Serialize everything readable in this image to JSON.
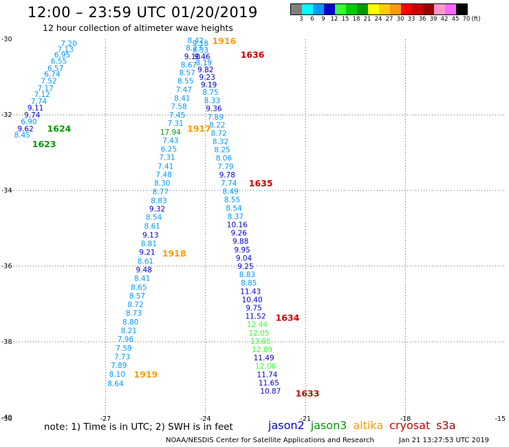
{
  "header": {
    "title": "12:00 – 23:59 UTC 01/20/2019",
    "subtitle": "12 hour collection of altimeter wave heights"
  },
  "colorscale": {
    "colors": [
      "#7f7f7f",
      "#00ffff",
      "#0099ff",
      "#0000cc",
      "#33ff33",
      "#00cc00",
      "#009900",
      "#ffff00",
      "#ffcc00",
      "#ff9900",
      "#ff0000",
      "#cc0000",
      "#990000",
      "#ff99cc",
      "#ff66ff",
      "#000000"
    ],
    "labels": [
      "3",
      "6",
      "9",
      "12",
      "15",
      "18",
      "21",
      "24",
      "27",
      "30",
      "33",
      "36",
      "39",
      "42",
      "45",
      "70"
    ],
    "unit": "(ft)"
  },
  "note": "note: 1) Time is in UTC; 2) SWH is in feet",
  "legend": [
    {
      "name": "jason2",
      "color": "#0000cc"
    },
    {
      "name": "jason3",
      "color": "#009900"
    },
    {
      "name": "altika",
      "color": "#ff9900"
    },
    {
      "name": "cryosat",
      "color": "#cc0000"
    },
    {
      "name": "s3a",
      "color": "#990000"
    }
  ],
  "footer": {
    "left": "NOAA/NESDIS Center for Satellite Applications and Research",
    "right": "Jan 21 13:27:53 UTC 2019"
  },
  "chart_data": {
    "type": "scatter",
    "xlim": [
      -30,
      -15
    ],
    "ylim": [
      -40,
      -30
    ],
    "xticks": [
      "-30",
      "-27",
      "-24",
      "-21",
      "-18",
      "-15"
    ],
    "yticks": [
      "-30",
      "-32",
      "-34",
      "-36",
      "-38",
      "-40"
    ],
    "grid": true,
    "colors": {
      "light": "#0099ff",
      "dark": "#0000cc",
      "green": "#009900",
      "lightgreen": "#33ff33",
      "orange": "#ff9900",
      "red": "#cc0000"
    },
    "points": [
      {
        "x": -28.1,
        "y": -30.11,
        "v": "7.20",
        "c": "light"
      },
      {
        "x": -28.2,
        "y": -30.26,
        "v": "7.13",
        "c": "light"
      },
      {
        "x": -28.3,
        "y": -30.41,
        "v": "6.95",
        "c": "light"
      },
      {
        "x": -28.4,
        "y": -30.57,
        "v": "6.55",
        "c": "light"
      },
      {
        "x": -28.5,
        "y": -30.76,
        "v": "6.57",
        "c": "light"
      },
      {
        "x": -28.6,
        "y": -30.92,
        "v": "6.74",
        "c": "light"
      },
      {
        "x": -28.7,
        "y": -31.1,
        "v": "7.52",
        "c": "light"
      },
      {
        "x": -28.8,
        "y": -31.29,
        "v": "7.17",
        "c": "light"
      },
      {
        "x": -28.9,
        "y": -31.45,
        "v": "7.12",
        "c": "light"
      },
      {
        "x": -29.0,
        "y": -31.64,
        "v": "7.74",
        "c": "light"
      },
      {
        "x": -29.1,
        "y": -31.81,
        "v": "9.11",
        "c": "dark"
      },
      {
        "x": -29.2,
        "y": -32.0,
        "v": "9.74",
        "c": "dark"
      },
      {
        "x": -29.3,
        "y": -32.17,
        "v": "6.90",
        "c": "light"
      },
      {
        "x": -29.4,
        "y": -32.36,
        "v": "9.62",
        "c": "dark"
      },
      {
        "x": -29.5,
        "y": -32.53,
        "v": "8.45",
        "c": "light"
      },
      {
        "x": -24.3,
        "y": -30.03,
        "v": "8.42",
        "c": "light"
      },
      {
        "x": -24.35,
        "y": -30.23,
        "v": "8.23",
        "c": "light"
      },
      {
        "x": -24.4,
        "y": -30.45,
        "v": "9.10",
        "c": "dark"
      },
      {
        "x": -24.5,
        "y": -30.67,
        "v": "8.67",
        "c": "light"
      },
      {
        "x": -24.55,
        "y": -30.88,
        "v": "8.57",
        "c": "light"
      },
      {
        "x": -24.6,
        "y": -31.1,
        "v": "8.55",
        "c": "light"
      },
      {
        "x": -24.65,
        "y": -31.33,
        "v": "7.47",
        "c": "light"
      },
      {
        "x": -24.7,
        "y": -31.55,
        "v": "8.41",
        "c": "light"
      },
      {
        "x": -24.8,
        "y": -31.77,
        "v": "7.58",
        "c": "light"
      },
      {
        "x": -24.85,
        "y": -32.0,
        "v": "7.45",
        "c": "light"
      },
      {
        "x": -24.9,
        "y": -32.22,
        "v": "7.31",
        "c": "light"
      },
      {
        "x": -25.05,
        "y": -32.45,
        "v": "17.94",
        "c": "green"
      },
      {
        "x": -25.05,
        "y": -32.67,
        "v": "7.43",
        "c": "light"
      },
      {
        "x": -25.1,
        "y": -32.9,
        "v": "6.25",
        "c": "light"
      },
      {
        "x": -25.15,
        "y": -33.12,
        "v": "7.31",
        "c": "light"
      },
      {
        "x": -25.2,
        "y": -33.35,
        "v": "7.41",
        "c": "light"
      },
      {
        "x": -25.25,
        "y": -33.57,
        "v": "7.48",
        "c": "light"
      },
      {
        "x": -25.3,
        "y": -33.8,
        "v": "8.30",
        "c": "light"
      },
      {
        "x": -25.35,
        "y": -34.03,
        "v": "8.77",
        "c": "light"
      },
      {
        "x": -25.4,
        "y": -34.26,
        "v": "8.83",
        "c": "light"
      },
      {
        "x": -25.45,
        "y": -34.48,
        "v": "9.32",
        "c": "dark"
      },
      {
        "x": -25.55,
        "y": -34.7,
        "v": "8.54",
        "c": "light"
      },
      {
        "x": -25.6,
        "y": -34.94,
        "v": "8.61",
        "c": "light"
      },
      {
        "x": -25.65,
        "y": -35.17,
        "v": "9.13",
        "c": "dark"
      },
      {
        "x": -25.7,
        "y": -35.4,
        "v": "8.81",
        "c": "light"
      },
      {
        "x": -25.75,
        "y": -35.63,
        "v": "9.21",
        "c": "dark"
      },
      {
        "x": -25.8,
        "y": -35.86,
        "v": "8.61",
        "c": "light"
      },
      {
        "x": -25.85,
        "y": -36.09,
        "v": "9.48",
        "c": "dark"
      },
      {
        "x": -25.9,
        "y": -36.32,
        "v": "8.41",
        "c": "light"
      },
      {
        "x": -26.0,
        "y": -36.55,
        "v": "8.65",
        "c": "light"
      },
      {
        "x": -26.05,
        "y": -36.78,
        "v": "8.57",
        "c": "light"
      },
      {
        "x": -26.1,
        "y": -37.01,
        "v": "8.72",
        "c": "light"
      },
      {
        "x": -26.15,
        "y": -37.24,
        "v": "8.73",
        "c": "light"
      },
      {
        "x": -26.25,
        "y": -37.47,
        "v": "8.80",
        "c": "light"
      },
      {
        "x": -26.3,
        "y": -37.7,
        "v": "8.21",
        "c": "light"
      },
      {
        "x": -26.4,
        "y": -37.93,
        "v": "7.96",
        "c": "light"
      },
      {
        "x": -26.45,
        "y": -38.16,
        "v": "7.59",
        "c": "light"
      },
      {
        "x": -26.5,
        "y": -38.39,
        "v": "7.73",
        "c": "light"
      },
      {
        "x": -26.6,
        "y": -38.62,
        "v": "7.89",
        "c": "light"
      },
      {
        "x": -26.65,
        "y": -38.85,
        "v": "8.10",
        "c": "light"
      },
      {
        "x": -26.7,
        "y": -39.1,
        "v": "8.64",
        "c": "light"
      },
      {
        "x": -24.15,
        "y": -30.11,
        "v": "9.18",
        "c": "light"
      },
      {
        "x": -24.15,
        "y": -30.28,
        "v": "8.33",
        "c": "light"
      },
      {
        "x": -24.1,
        "y": -30.45,
        "v": "9.46",
        "c": "dark"
      },
      {
        "x": -24.05,
        "y": -30.62,
        "v": "8.19",
        "c": "light"
      },
      {
        "x": -24.0,
        "y": -30.8,
        "v": "9.82",
        "c": "dark"
      },
      {
        "x": -23.95,
        "y": -31.0,
        "v": "9.23",
        "c": "dark"
      },
      {
        "x": -23.9,
        "y": -31.2,
        "v": "9.19",
        "c": "dark"
      },
      {
        "x": -23.85,
        "y": -31.4,
        "v": "8.75",
        "c": "light"
      },
      {
        "x": -23.8,
        "y": -31.62,
        "v": "8.33",
        "c": "light"
      },
      {
        "x": -23.75,
        "y": -31.83,
        "v": "9.36",
        "c": "dark"
      },
      {
        "x": -23.7,
        "y": -32.05,
        "v": "7.89",
        "c": "light"
      },
      {
        "x": -23.65,
        "y": -32.26,
        "v": "8.22",
        "c": "light"
      },
      {
        "x": -23.6,
        "y": -32.48,
        "v": "8.72",
        "c": "light"
      },
      {
        "x": -23.55,
        "y": -32.7,
        "v": "8.32",
        "c": "light"
      },
      {
        "x": -23.5,
        "y": -32.92,
        "v": "8.25",
        "c": "light"
      },
      {
        "x": -23.45,
        "y": -33.14,
        "v": "8.06",
        "c": "light"
      },
      {
        "x": -23.4,
        "y": -33.36,
        "v": "7.79",
        "c": "light"
      },
      {
        "x": -23.35,
        "y": -33.58,
        "v": "9.78",
        "c": "dark"
      },
      {
        "x": -23.3,
        "y": -33.8,
        "v": "7.74",
        "c": "light"
      },
      {
        "x": -23.25,
        "y": -34.02,
        "v": "8.49",
        "c": "light"
      },
      {
        "x": -23.2,
        "y": -34.24,
        "v": "8.55",
        "c": "light"
      },
      {
        "x": -23.15,
        "y": -34.46,
        "v": "8.54",
        "c": "light"
      },
      {
        "x": -23.1,
        "y": -34.68,
        "v": "8.37",
        "c": "light"
      },
      {
        "x": -23.05,
        "y": -34.9,
        "v": "10.16",
        "c": "dark"
      },
      {
        "x": -23.0,
        "y": -35.12,
        "v": "9.26",
        "c": "dark"
      },
      {
        "x": -22.95,
        "y": -35.34,
        "v": "9.88",
        "c": "dark"
      },
      {
        "x": -22.9,
        "y": -35.56,
        "v": "9.95",
        "c": "dark"
      },
      {
        "x": -22.85,
        "y": -35.78,
        "v": "9.04",
        "c": "dark"
      },
      {
        "x": -22.8,
        "y": -36.0,
        "v": "9.25",
        "c": "dark"
      },
      {
        "x": -22.75,
        "y": -36.22,
        "v": "8.83",
        "c": "light"
      },
      {
        "x": -22.7,
        "y": -36.44,
        "v": "8.85",
        "c": "light"
      },
      {
        "x": -22.65,
        "y": -36.66,
        "v": "11.43",
        "c": "dark"
      },
      {
        "x": -22.6,
        "y": -36.88,
        "v": "10.40",
        "c": "dark"
      },
      {
        "x": -22.55,
        "y": -37.1,
        "v": "9.75",
        "c": "dark"
      },
      {
        "x": -22.5,
        "y": -37.32,
        "v": "11.52",
        "c": "dark"
      },
      {
        "x": -22.45,
        "y": -37.54,
        "v": "12.44",
        "c": "lightgreen"
      },
      {
        "x": -22.4,
        "y": -37.76,
        "v": "12.05",
        "c": "lightgreen"
      },
      {
        "x": -22.35,
        "y": -37.98,
        "v": "13.06",
        "c": "lightgreen"
      },
      {
        "x": -22.3,
        "y": -38.2,
        "v": "12.89",
        "c": "lightgreen"
      },
      {
        "x": -22.25,
        "y": -38.42,
        "v": "11.49",
        "c": "dark"
      },
      {
        "x": -22.2,
        "y": -38.64,
        "v": "12.06",
        "c": "lightgreen"
      },
      {
        "x": -22.15,
        "y": -38.86,
        "v": "11.74",
        "c": "dark"
      },
      {
        "x": -22.1,
        "y": -39.08,
        "v": "11.65",
        "c": "dark"
      },
      {
        "x": -22.05,
        "y": -39.3,
        "v": "10.87",
        "c": "dark"
      }
    ],
    "annotations": [
      {
        "text": "1916",
        "x": -23.8,
        "y": -30.04,
        "c": "orange"
      },
      {
        "text": "1636",
        "x": -22.95,
        "y": -30.4,
        "c": "red"
      },
      {
        "text": "1624",
        "x": -28.75,
        "y": -32.35,
        "c": "green"
      },
      {
        "text": "1623",
        "x": -29.2,
        "y": -32.76,
        "c": "green"
      },
      {
        "text": "1917",
        "x": -24.55,
        "y": -32.35,
        "c": "orange"
      },
      {
        "text": "1635",
        "x": -22.7,
        "y": -33.8,
        "c": "red"
      },
      {
        "text": "1918",
        "x": -25.3,
        "y": -35.65,
        "c": "orange"
      },
      {
        "text": "1634",
        "x": -21.9,
        "y": -37.35,
        "c": "red"
      },
      {
        "text": "1919",
        "x": -26.15,
        "y": -38.85,
        "c": "orange"
      },
      {
        "text": "1633",
        "x": -21.3,
        "y": -39.35,
        "c": "red"
      }
    ]
  }
}
